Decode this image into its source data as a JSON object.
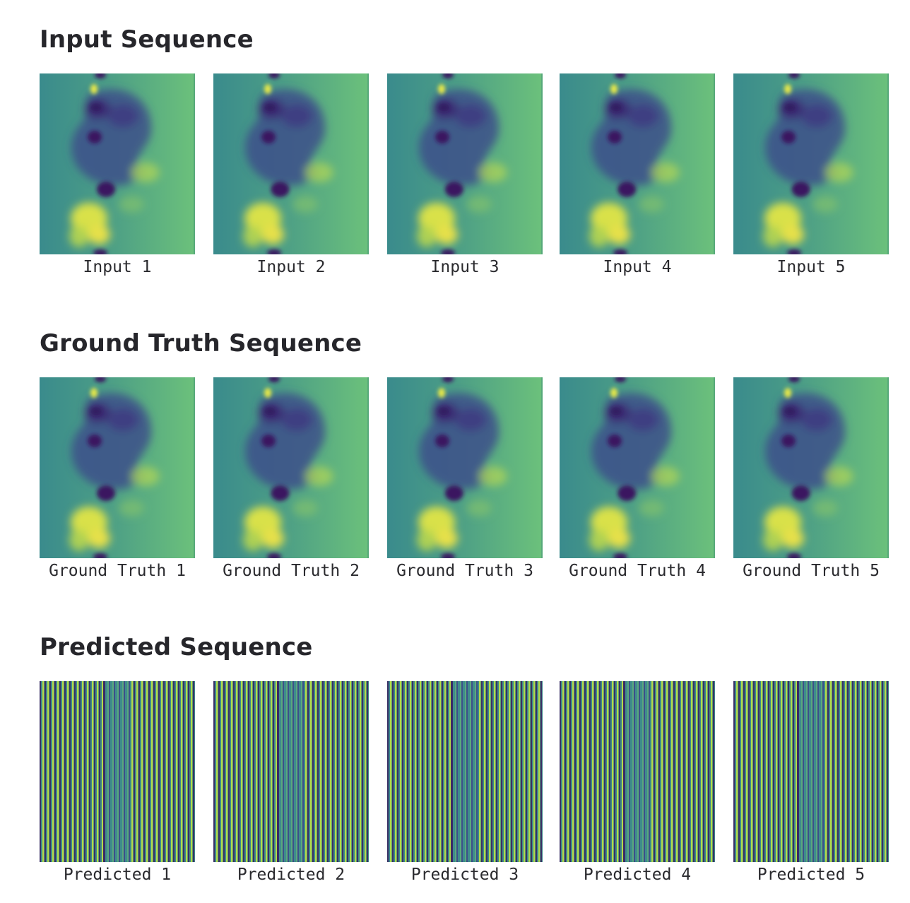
{
  "sections": [
    {
      "title": "Input Sequence",
      "kind": "field",
      "frames": [
        "Input 1",
        "Input 2",
        "Input 3",
        "Input 4",
        "Input 5"
      ]
    },
    {
      "title": "Ground Truth Sequence",
      "kind": "field",
      "frames": [
        "Ground Truth 1",
        "Ground Truth 2",
        "Ground Truth 3",
        "Ground Truth 4",
        "Ground Truth 5"
      ]
    },
    {
      "title": "Predicted Sequence",
      "kind": "stripes",
      "frames": [
        "Predicted 1",
        "Predicted 2",
        "Predicted 3",
        "Predicted 4",
        "Predicted 5"
      ]
    }
  ],
  "colors": {
    "background_left": "#3a8b8c",
    "background_right": "#6cc17b",
    "dark_blob": "#3a1560",
    "mid_blob": "#3d4f8a",
    "yellow_blob": "#d9e14a",
    "light_green_blob": "#a9d35a"
  }
}
